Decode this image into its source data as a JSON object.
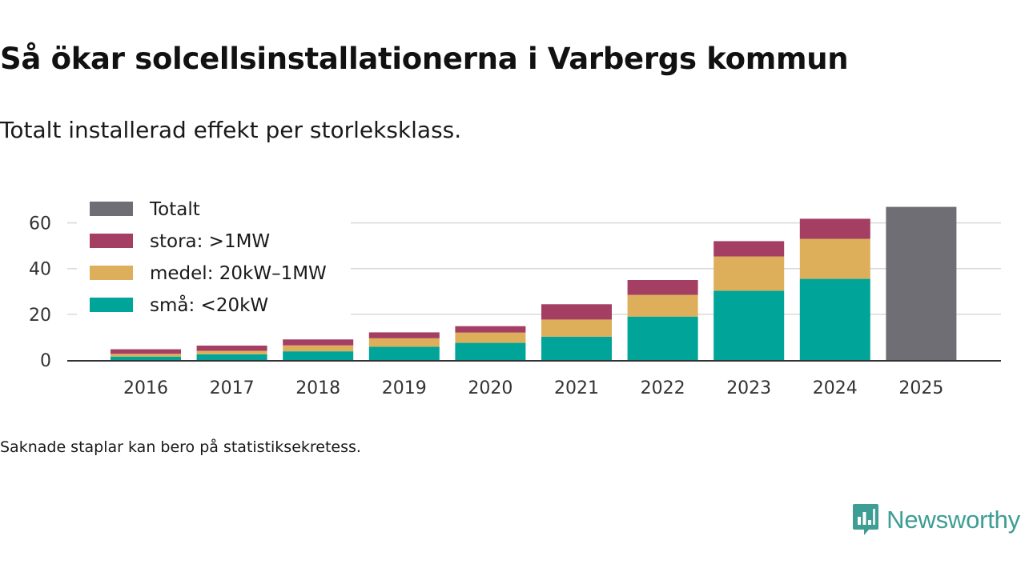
{
  "header": {
    "title": "Så ökar solcellsinstallationerna i Varbergs kommun",
    "subtitle": "Totalt installerad effekt per storleksklass."
  },
  "footer": {
    "note": "Saknade staplar kan bero på statistiksekretess.",
    "brand": "Newsworthy",
    "brand_icon": "newsworthy-logo-icon"
  },
  "colors": {
    "totalt": "#6f6e74",
    "stora": "#a43f63",
    "medel": "#deaf5b",
    "sma": "#00a499",
    "grid": "#d9d9d9",
    "axis": "#333333",
    "brand": "#3e9d94"
  },
  "chart_data": {
    "type": "bar",
    "stacked": true,
    "title": "Så ökar solcellsinstallationerna i Varbergs kommun",
    "subtitle": "Totalt installerad effekt per storleksklass.",
    "xlabel": "",
    "ylabel": "",
    "ylim": [
      0,
      70
    ],
    "yticks": [
      0,
      20,
      40,
      60
    ],
    "grid": true,
    "legend_position": "top-left",
    "categories": [
      "2016",
      "2017",
      "2018",
      "2019",
      "2020",
      "2021",
      "2022",
      "2023",
      "2024",
      "2025"
    ],
    "series": [
      {
        "key": "sma",
        "name": "små: <20kW",
        "values": [
          1.5,
          2.5,
          3.8,
          5.8,
          7.5,
          10.2,
          19.0,
          30.3,
          35.5,
          null
        ]
      },
      {
        "key": "medel",
        "name": "medel: 20kW–1MW",
        "values": [
          1.2,
          1.5,
          2.6,
          3.7,
          4.5,
          7.5,
          9.5,
          15.0,
          17.5,
          null
        ]
      },
      {
        "key": "stora",
        "name": "stora: >1MW",
        "values": [
          2.0,
          2.3,
          2.6,
          2.6,
          2.8,
          6.7,
          6.5,
          6.7,
          8.8,
          null
        ]
      },
      {
        "key": "totalt",
        "name": "Totalt",
        "values": [
          null,
          null,
          null,
          null,
          null,
          null,
          null,
          null,
          null,
          67.0
        ]
      }
    ],
    "legend_order": [
      "totalt",
      "stora",
      "medel",
      "sma"
    ]
  }
}
